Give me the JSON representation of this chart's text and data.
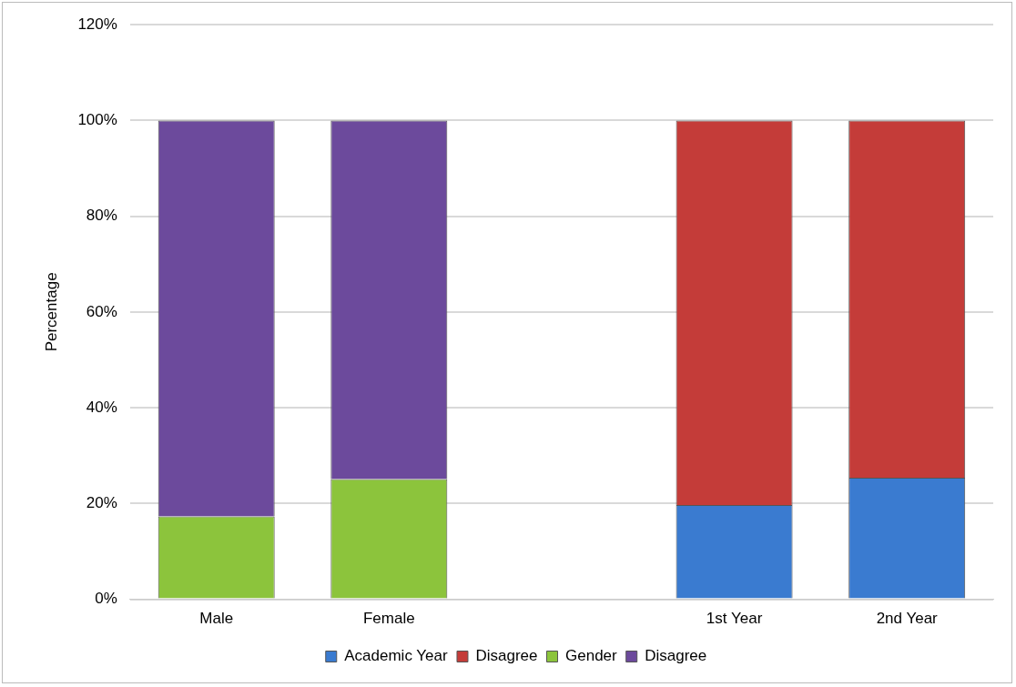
{
  "chart_data": {
    "type": "bar",
    "stacked": true,
    "ylabel": "Percentage",
    "categories": [
      "Male",
      "Female",
      null,
      "1st Year",
      "2nd Year"
    ],
    "series": [
      {
        "name": "Academic Year",
        "color": "#3a7bd0",
        "values": [
          null,
          null,
          null,
          19.7,
          25.4
        ]
      },
      {
        "name": "Disagree",
        "color": "#c43c39",
        "values": [
          null,
          null,
          null,
          80.3,
          74.6
        ]
      },
      {
        "name": "Gender",
        "color": "#8cc43c",
        "values": [
          17.3,
          25.1,
          null,
          null,
          null
        ]
      },
      {
        "name": "Disagree",
        "color": "#6c4a9c",
        "values": [
          82.7,
          74.9,
          null,
          null,
          null
        ]
      }
    ],
    "ylim": [
      0,
      120
    ],
    "yticks": [
      {
        "value": 0,
        "label": "0%"
      },
      {
        "value": 20,
        "label": "20%"
      },
      {
        "value": 40,
        "label": "40%"
      },
      {
        "value": 60,
        "label": "60%"
      },
      {
        "value": 80,
        "label": "80%"
      },
      {
        "value": 100,
        "label": "100%"
      },
      {
        "value": 120,
        "label": "120%"
      }
    ],
    "grid": "y",
    "legend": "bottom"
  }
}
